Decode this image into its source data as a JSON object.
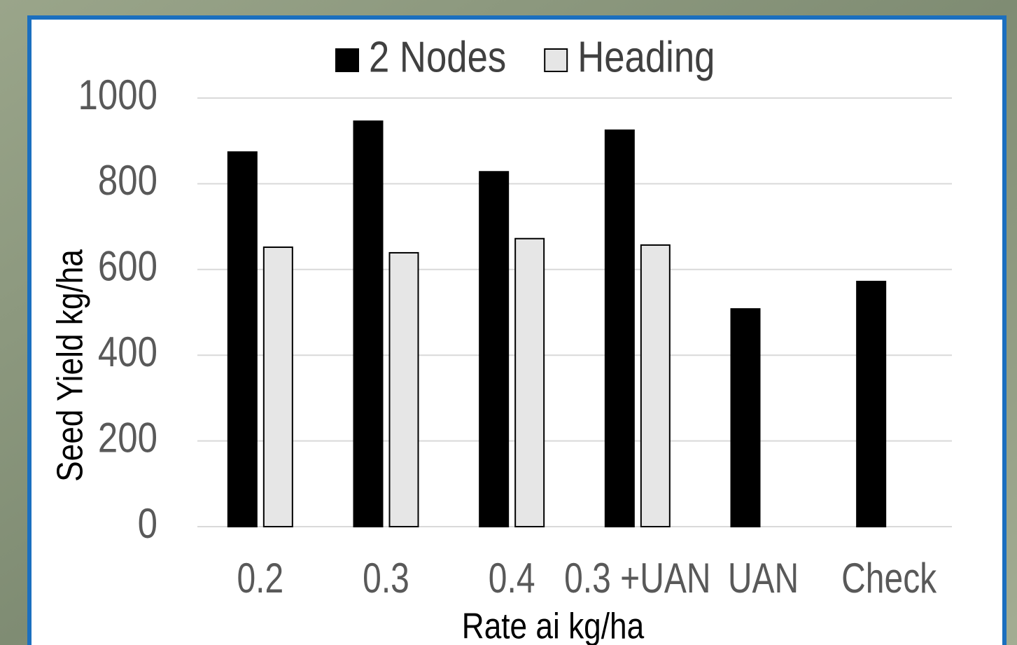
{
  "chart_data": {
    "type": "bar",
    "x_label": "Rate ai kg/ha",
    "y_label": "Seed Yield kg/ha",
    "categories": [
      "0.2",
      "0.3",
      "0.4",
      "0.3 +UAN",
      "UAN",
      "Check"
    ],
    "series": [
      {
        "name": "2 Nodes",
        "color": "#000000",
        "values": [
          874,
          946,
          828,
          925,
          508,
          572
        ]
      },
      {
        "name": "Heading",
        "color": "#e6e6e6",
        "values": [
          652,
          639,
          672,
          657,
          null,
          null
        ]
      }
    ],
    "ylim": [
      0,
      1000
    ],
    "yticks": [
      0,
      200,
      400,
      600,
      800,
      1000
    ],
    "grid": true,
    "legend": "top"
  }
}
